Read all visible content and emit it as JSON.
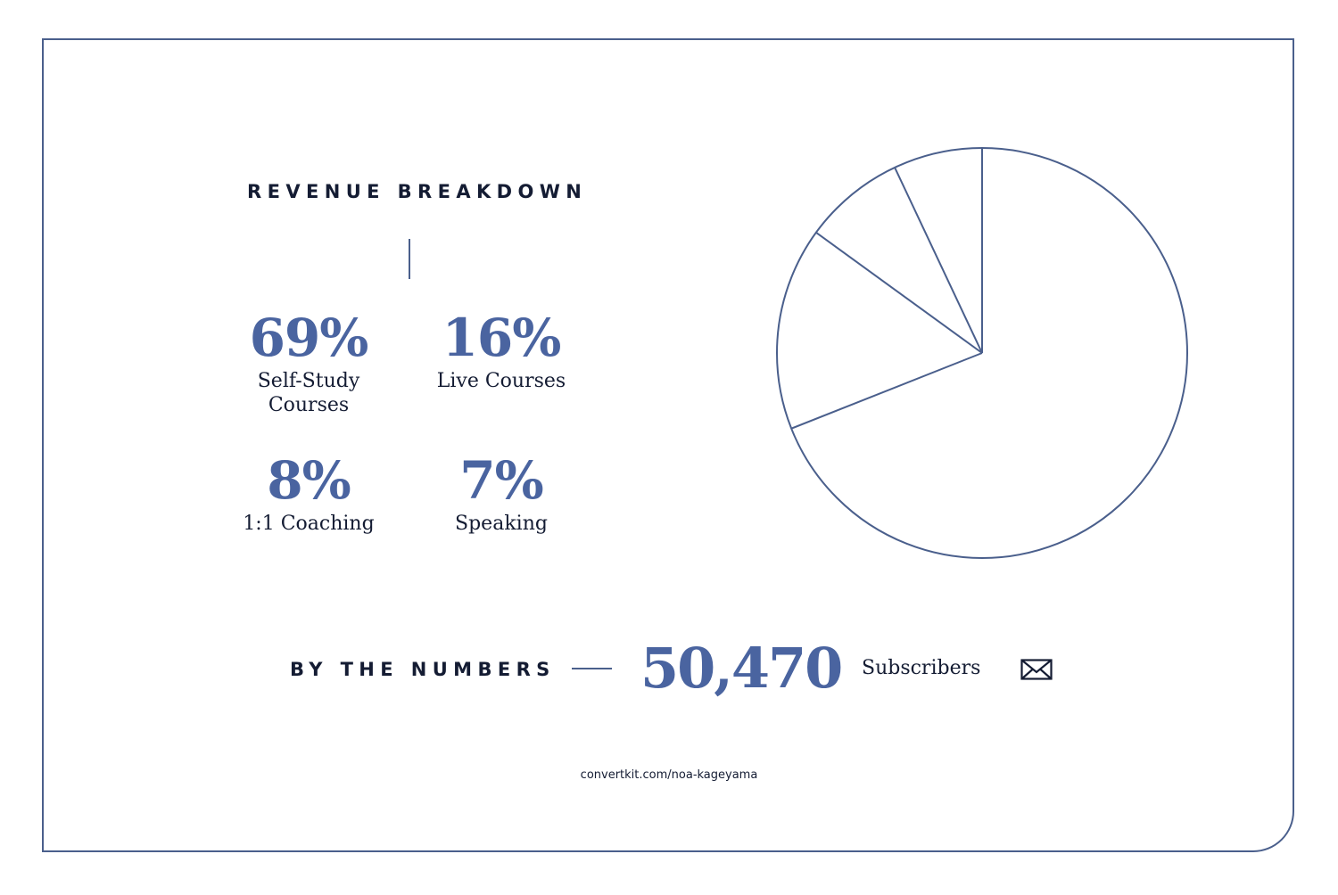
{
  "header": {
    "title": "REVENUE BREAKDOWN"
  },
  "stats": [
    {
      "value": "69%",
      "label_line1": "Self-Study",
      "label_line2": "Courses"
    },
    {
      "value": "16%",
      "label_line1": "Live Courses",
      "label_line2": ""
    },
    {
      "value": "8%",
      "label_line1": "1:1 Coaching",
      "label_line2": ""
    },
    {
      "value": "7%",
      "label_line1": "Speaking",
      "label_line2": ""
    }
  ],
  "numbers": {
    "title": "BY THE NUMBERS",
    "value": "50,470",
    "label": "Subscribers",
    "icon": "envelope-icon"
  },
  "footer": {
    "url": "convertkit.com/noa-kageyama"
  },
  "colors": {
    "accent": "#4a64a0",
    "line": "#4a5f8c",
    "text": "#141c33"
  },
  "chart_data": {
    "type": "pie",
    "title": "REVENUE BREAKDOWN",
    "categories": [
      "Self-Study Courses",
      "Live Courses",
      "1:1 Coaching",
      "Speaking"
    ],
    "values": [
      69,
      16,
      8,
      7
    ],
    "unit": "%",
    "start_angle": "12 o'clock",
    "direction": "clockwise",
    "style": "outline only, no fill, no slice labels",
    "legend": "stat grid to the left of the pie"
  }
}
